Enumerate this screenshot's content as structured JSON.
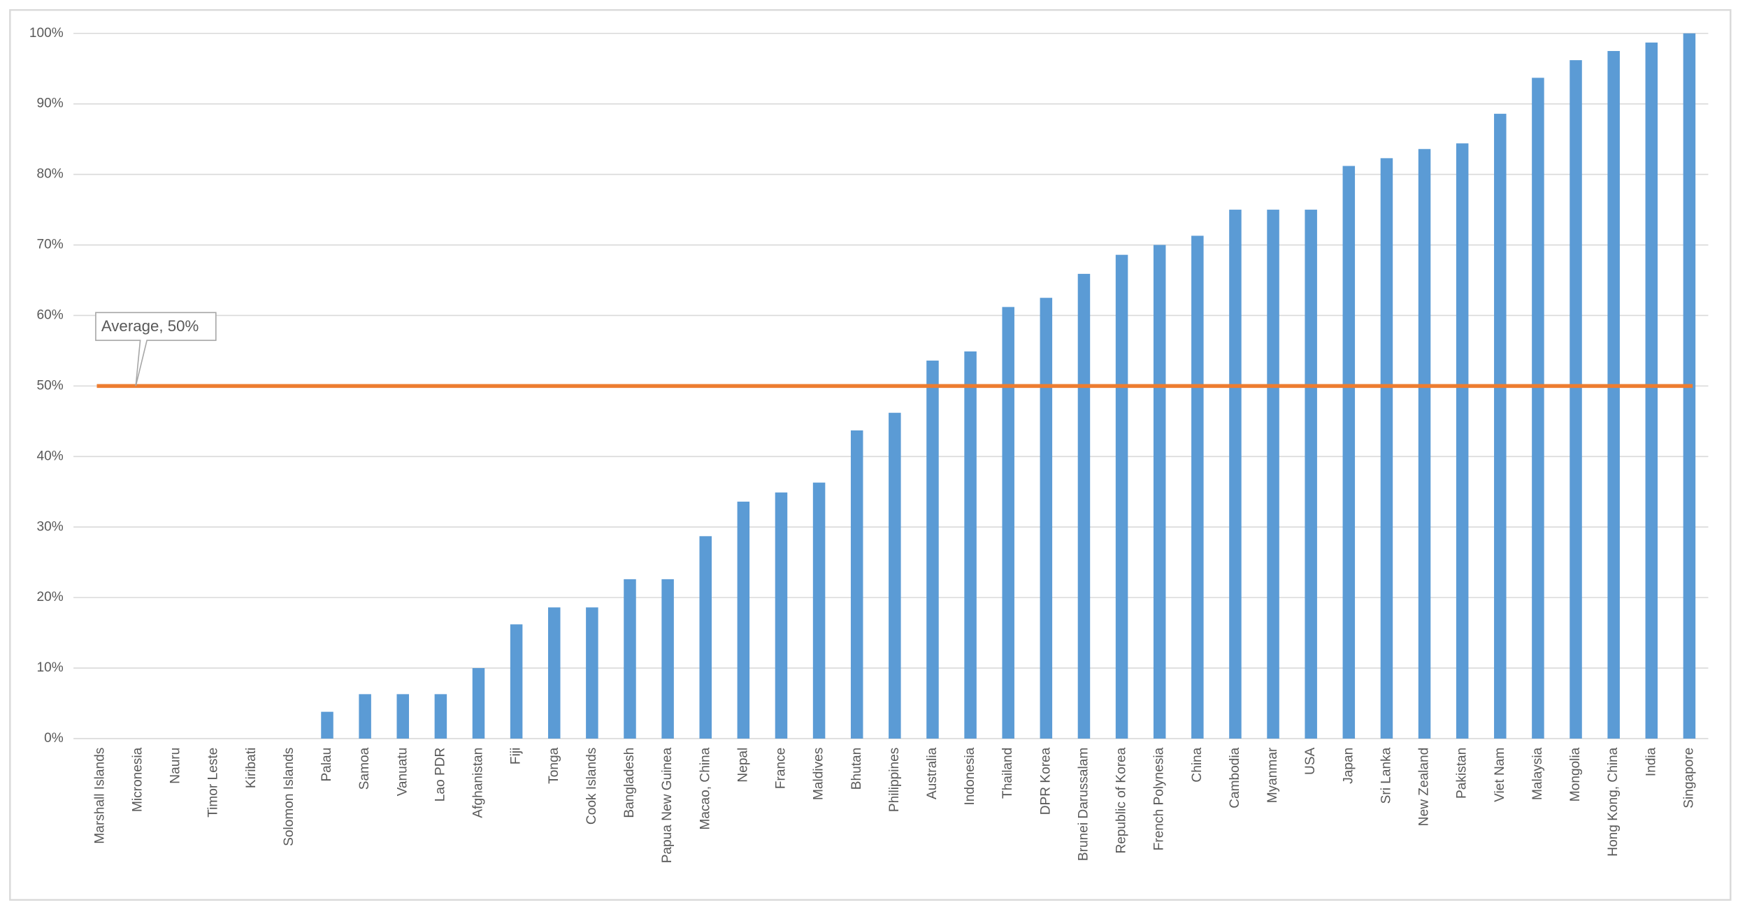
{
  "chart_data": {
    "type": "bar",
    "categories": [
      "Marshall Islands",
      "Micronesia",
      "Nauru",
      "Timor Leste",
      "Kiribati",
      "Solomon Islands",
      "Palau",
      "Samoa",
      "Vanuatu",
      "Lao PDR",
      "Afghanistan",
      "Fiji",
      "Tonga",
      "Cook Islands",
      "Bangladesh",
      "Papua New Guinea",
      "Macao, China",
      "Nepal",
      "France",
      "Maldives",
      "Bhutan",
      "Philippines",
      "Australia",
      "Indonesia",
      "Thailand",
      "DPR Korea",
      "Brunei Darussalam",
      "Republic of Korea",
      "French Polynesia",
      "China",
      "Cambodia",
      "Myanmar",
      "USA",
      "Japan",
      "Sri Lanka",
      "New Zealand",
      "Pakistan",
      "Viet Nam",
      "Malaysia",
      "Mongolia",
      "Hong Kong, China",
      "India",
      "Singapore"
    ],
    "values": [
      0,
      0,
      0,
      0,
      0,
      0,
      3.8,
      6.3,
      6.3,
      6.3,
      10,
      16.2,
      18.6,
      18.6,
      22.6,
      22.6,
      28.7,
      33.6,
      34.9,
      36.3,
      43.7,
      46.2,
      53.6,
      54.9,
      61.2,
      62.5,
      65.9,
      68.6,
      70,
      71.3,
      75,
      75,
      75,
      81.2,
      82.3,
      83.6,
      84.4,
      88.6,
      93.7,
      96.2,
      97.5,
      98.7,
      100
    ],
    "color": "#5b9bd5",
    "average": {
      "value": 50,
      "label": "Average, 50%",
      "color": "#ed7d31"
    },
    "ylim": [
      0,
      100
    ],
    "yticks": [
      {
        "value": 0,
        "label": "0%"
      },
      {
        "value": 10,
        "label": "10%"
      },
      {
        "value": 20,
        "label": "20%"
      },
      {
        "value": 30,
        "label": "30%"
      },
      {
        "value": 40,
        "label": "40%"
      },
      {
        "value": 50,
        "label": "50%"
      },
      {
        "value": 60,
        "label": "60%"
      },
      {
        "value": 70,
        "label": "70%"
      },
      {
        "value": 80,
        "label": "80%"
      },
      {
        "value": 90,
        "label": "90%"
      },
      {
        "value": 100,
        "label": "100%"
      }
    ],
    "grid": true
  }
}
